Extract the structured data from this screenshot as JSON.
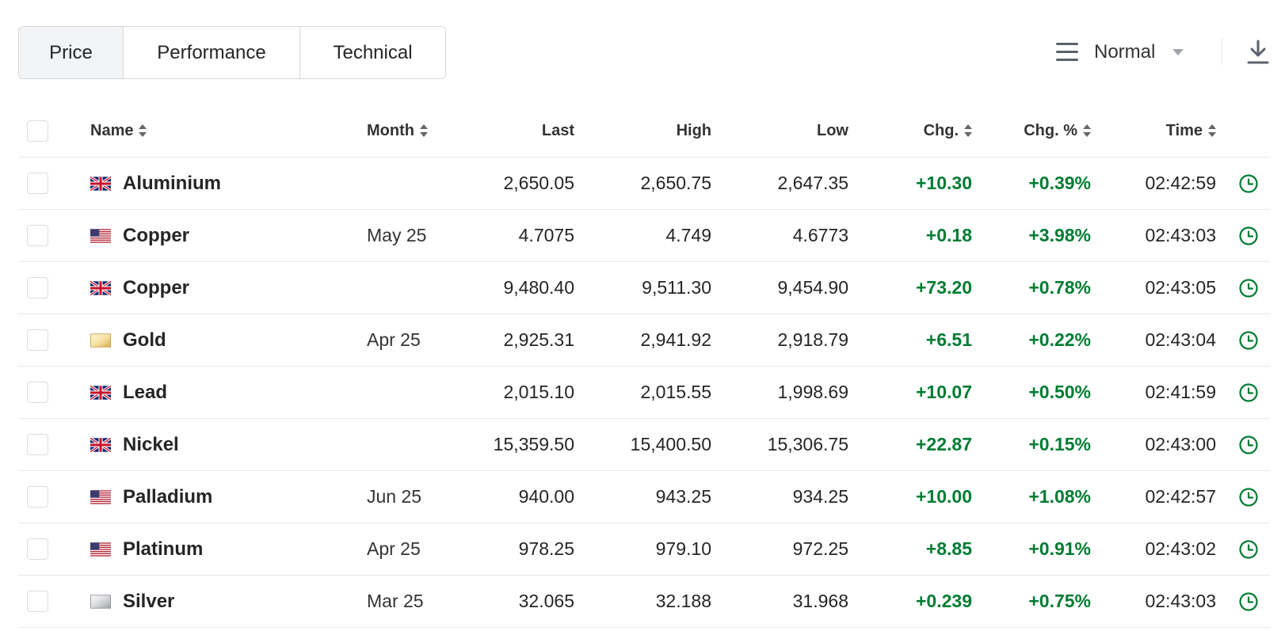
{
  "tabs": [
    {
      "label": "Price",
      "active": true
    },
    {
      "label": "Performance",
      "active": false
    },
    {
      "label": "Technical",
      "active": false
    }
  ],
  "toolbar": {
    "view_icon": "menu-icon",
    "view_label": "Normal",
    "download_icon": "download-icon"
  },
  "colors": {
    "positive": "#007c32",
    "border": "#d5d7da",
    "active_tab_bg": "#f3f4f5"
  },
  "table": {
    "columns": {
      "name": "Name",
      "month": "Month",
      "last": "Last",
      "high": "High",
      "low": "Low",
      "chg": "Chg.",
      "chg_pct": "Chg. %",
      "time": "Time"
    },
    "rows": [
      {
        "flag": "uk-flag-icon",
        "name": "Aluminium",
        "month": "",
        "last": "2,650.05",
        "high": "2,650.75",
        "low": "2,647.35",
        "chg": "+10.30",
        "chg_pct": "+0.39%",
        "time": "02:42:59"
      },
      {
        "flag": "us-flag-icon",
        "name": "Copper",
        "month": "May 25",
        "last": "4.7075",
        "high": "4.749",
        "low": "4.6773",
        "chg": "+0.18",
        "chg_pct": "+3.98%",
        "time": "02:43:03"
      },
      {
        "flag": "uk-flag-icon",
        "name": "Copper",
        "month": "",
        "last": "9,480.40",
        "high": "9,511.30",
        "low": "9,454.90",
        "chg": "+73.20",
        "chg_pct": "+0.78%",
        "time": "02:43:05"
      },
      {
        "flag": "gold-flag-icon",
        "name": "Gold",
        "month": "Apr 25",
        "last": "2,925.31",
        "high": "2,941.92",
        "low": "2,918.79",
        "chg": "+6.51",
        "chg_pct": "+0.22%",
        "time": "02:43:04"
      },
      {
        "flag": "uk-flag-icon",
        "name": "Lead",
        "month": "",
        "last": "2,015.10",
        "high": "2,015.55",
        "low": "1,998.69",
        "chg": "+10.07",
        "chg_pct": "+0.50%",
        "time": "02:41:59"
      },
      {
        "flag": "uk-flag-icon",
        "name": "Nickel",
        "month": "",
        "last": "15,359.50",
        "high": "15,400.50",
        "low": "15,306.75",
        "chg": "+22.87",
        "chg_pct": "+0.15%",
        "time": "02:43:00"
      },
      {
        "flag": "us-flag-icon",
        "name": "Palladium",
        "month": "Jun 25",
        "last": "940.00",
        "high": "943.25",
        "low": "934.25",
        "chg": "+10.00",
        "chg_pct": "+1.08%",
        "time": "02:42:57"
      },
      {
        "flag": "us-flag-icon",
        "name": "Platinum",
        "month": "Apr 25",
        "last": "978.25",
        "high": "979.10",
        "low": "972.25",
        "chg": "+8.85",
        "chg_pct": "+0.91%",
        "time": "02:43:02"
      },
      {
        "flag": "silver-flag-icon",
        "name": "Silver",
        "month": "Mar 25",
        "last": "32.065",
        "high": "32.188",
        "low": "31.968",
        "chg": "+0.239",
        "chg_pct": "+0.75%",
        "time": "02:43:03"
      }
    ]
  }
}
